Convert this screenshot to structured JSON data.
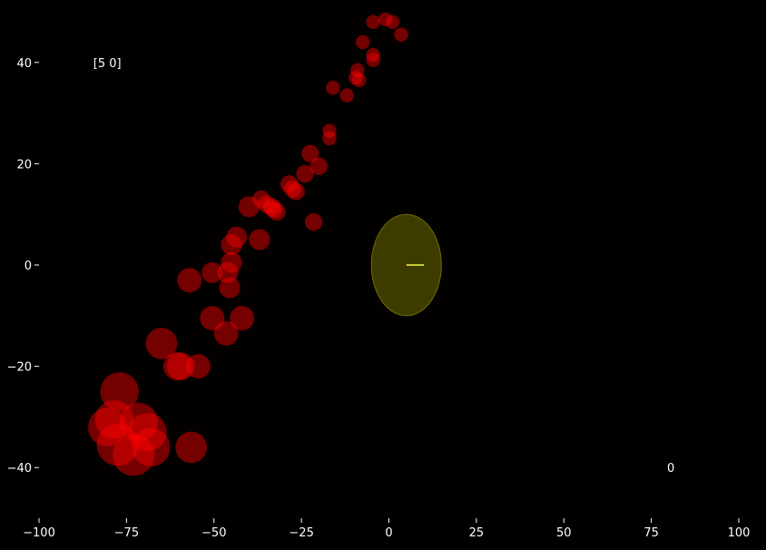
{
  "chart_data": {
    "type": "scatter",
    "title": "",
    "xlabel": "",
    "ylabel": "",
    "xlim": [
      -100,
      100
    ],
    "ylim": [
      -50,
      50
    ],
    "grid": false,
    "x_ticks": [
      -100,
      -75,
      -50,
      -25,
      0,
      25,
      50,
      75,
      100
    ],
    "x_tick_labels": [
      "−100",
      "−75",
      "−50",
      "−25",
      "0",
      "25",
      "50",
      "75",
      "100"
    ],
    "y_ticks": [
      -40,
      -20,
      0,
      20,
      40
    ],
    "y_tick_labels": [
      "−40",
      "−20",
      "0",
      "20",
      "40"
    ],
    "background_color": "#000000",
    "plot_background_color": "#030000",
    "marker_color": "#ff0000",
    "marker_alpha": 0.45,
    "points": [
      {
        "x": -4.5,
        "y": 48,
        "r": 2
      },
      {
        "x": -1,
        "y": 48.5,
        "r": 2
      },
      {
        "x": 1,
        "y": 48,
        "r": 2
      },
      {
        "x": 3.5,
        "y": 45.5,
        "r": 2
      },
      {
        "x": -7.5,
        "y": 44,
        "r": 2
      },
      {
        "x": -4.5,
        "y": 41.5,
        "r": 2
      },
      {
        "x": -4.5,
        "y": 40.5,
        "r": 2
      },
      {
        "x": -9,
        "y": 38.5,
        "r": 2
      },
      {
        "x": -9.5,
        "y": 37,
        "r": 2
      },
      {
        "x": -8.5,
        "y": 36.5,
        "r": 2
      },
      {
        "x": -16,
        "y": 35,
        "r": 2
      },
      {
        "x": -12,
        "y": 33.5,
        "r": 2
      },
      {
        "x": -17,
        "y": 26.5,
        "r": 2
      },
      {
        "x": -17,
        "y": 25,
        "r": 2
      },
      {
        "x": -22.5,
        "y": 22,
        "r": 2.5
      },
      {
        "x": -20,
        "y": 19.5,
        "r": 2.5
      },
      {
        "x": -24,
        "y": 18,
        "r": 2.5
      },
      {
        "x": -28.5,
        "y": 16,
        "r": 2.5
      },
      {
        "x": -27.5,
        "y": 15,
        "r": 2.5
      },
      {
        "x": -26.5,
        "y": 14.5,
        "r": 2.5
      },
      {
        "x": -36.5,
        "y": 13,
        "r": 2.5
      },
      {
        "x": -35,
        "y": 12,
        "r": 2.5
      },
      {
        "x": -33.5,
        "y": 11.5,
        "r": 2.5
      },
      {
        "x": -33,
        "y": 11,
        "r": 2.5
      },
      {
        "x": -32,
        "y": 10.5,
        "r": 2.5
      },
      {
        "x": -40,
        "y": 11.5,
        "r": 3
      },
      {
        "x": -21.5,
        "y": 8.5,
        "r": 2.5
      },
      {
        "x": -43.5,
        "y": 5.5,
        "r": 3
      },
      {
        "x": -37,
        "y": 5,
        "r": 3
      },
      {
        "x": -45,
        "y": 4,
        "r": 3
      },
      {
        "x": -45,
        "y": 0.5,
        "r": 3
      },
      {
        "x": -46,
        "y": -1.5,
        "r": 3
      },
      {
        "x": -50.5,
        "y": -1.5,
        "r": 3
      },
      {
        "x": -57,
        "y": -3,
        "r": 3.5
      },
      {
        "x": -45.5,
        "y": -4.5,
        "r": 3
      },
      {
        "x": -50.5,
        "y": -10.5,
        "r": 3.5
      },
      {
        "x": -42,
        "y": -10.5,
        "r": 3.5
      },
      {
        "x": -46.5,
        "y": -13.5,
        "r": 3.5
      },
      {
        "x": -65,
        "y": -15.5,
        "r": 4.5
      },
      {
        "x": -60.5,
        "y": -20,
        "r": 4
      },
      {
        "x": -59.5,
        "y": -20,
        "r": 4
      },
      {
        "x": -54.5,
        "y": -20,
        "r": 3.5
      },
      {
        "x": -77,
        "y": -25,
        "r": 5.5
      },
      {
        "x": -78.5,
        "y": -30.5,
        "r": 5.5
      },
      {
        "x": -71.5,
        "y": -31,
        "r": 5.5
      },
      {
        "x": -80.5,
        "y": -32,
        "r": 5.5
      },
      {
        "x": -69,
        "y": -33,
        "r": 5.5
      },
      {
        "x": -77.5,
        "y": -35.5,
        "r": 6
      },
      {
        "x": -68,
        "y": -36,
        "r": 5.5
      },
      {
        "x": -56.5,
        "y": -36,
        "r": 4.5
      },
      {
        "x": -73,
        "y": -37.5,
        "r": 6
      }
    ],
    "ellipse": {
      "cx": 5,
      "cy": 0,
      "rx": 10,
      "ry": 10,
      "fill": "#5c5c00",
      "stroke": "#6e6e00",
      "alpha": 0.65
    },
    "segment": {
      "x1": 5,
      "y1": 0,
      "x2": 10,
      "y2": 0,
      "color": "#c8c832"
    },
    "annotations": [
      {
        "id": "top-left",
        "text": "[5 0]",
        "x": -84.5,
        "y": 40
      },
      {
        "id": "bottom-right",
        "text": "0",
        "x": 79.5,
        "y": -40
      }
    ]
  }
}
